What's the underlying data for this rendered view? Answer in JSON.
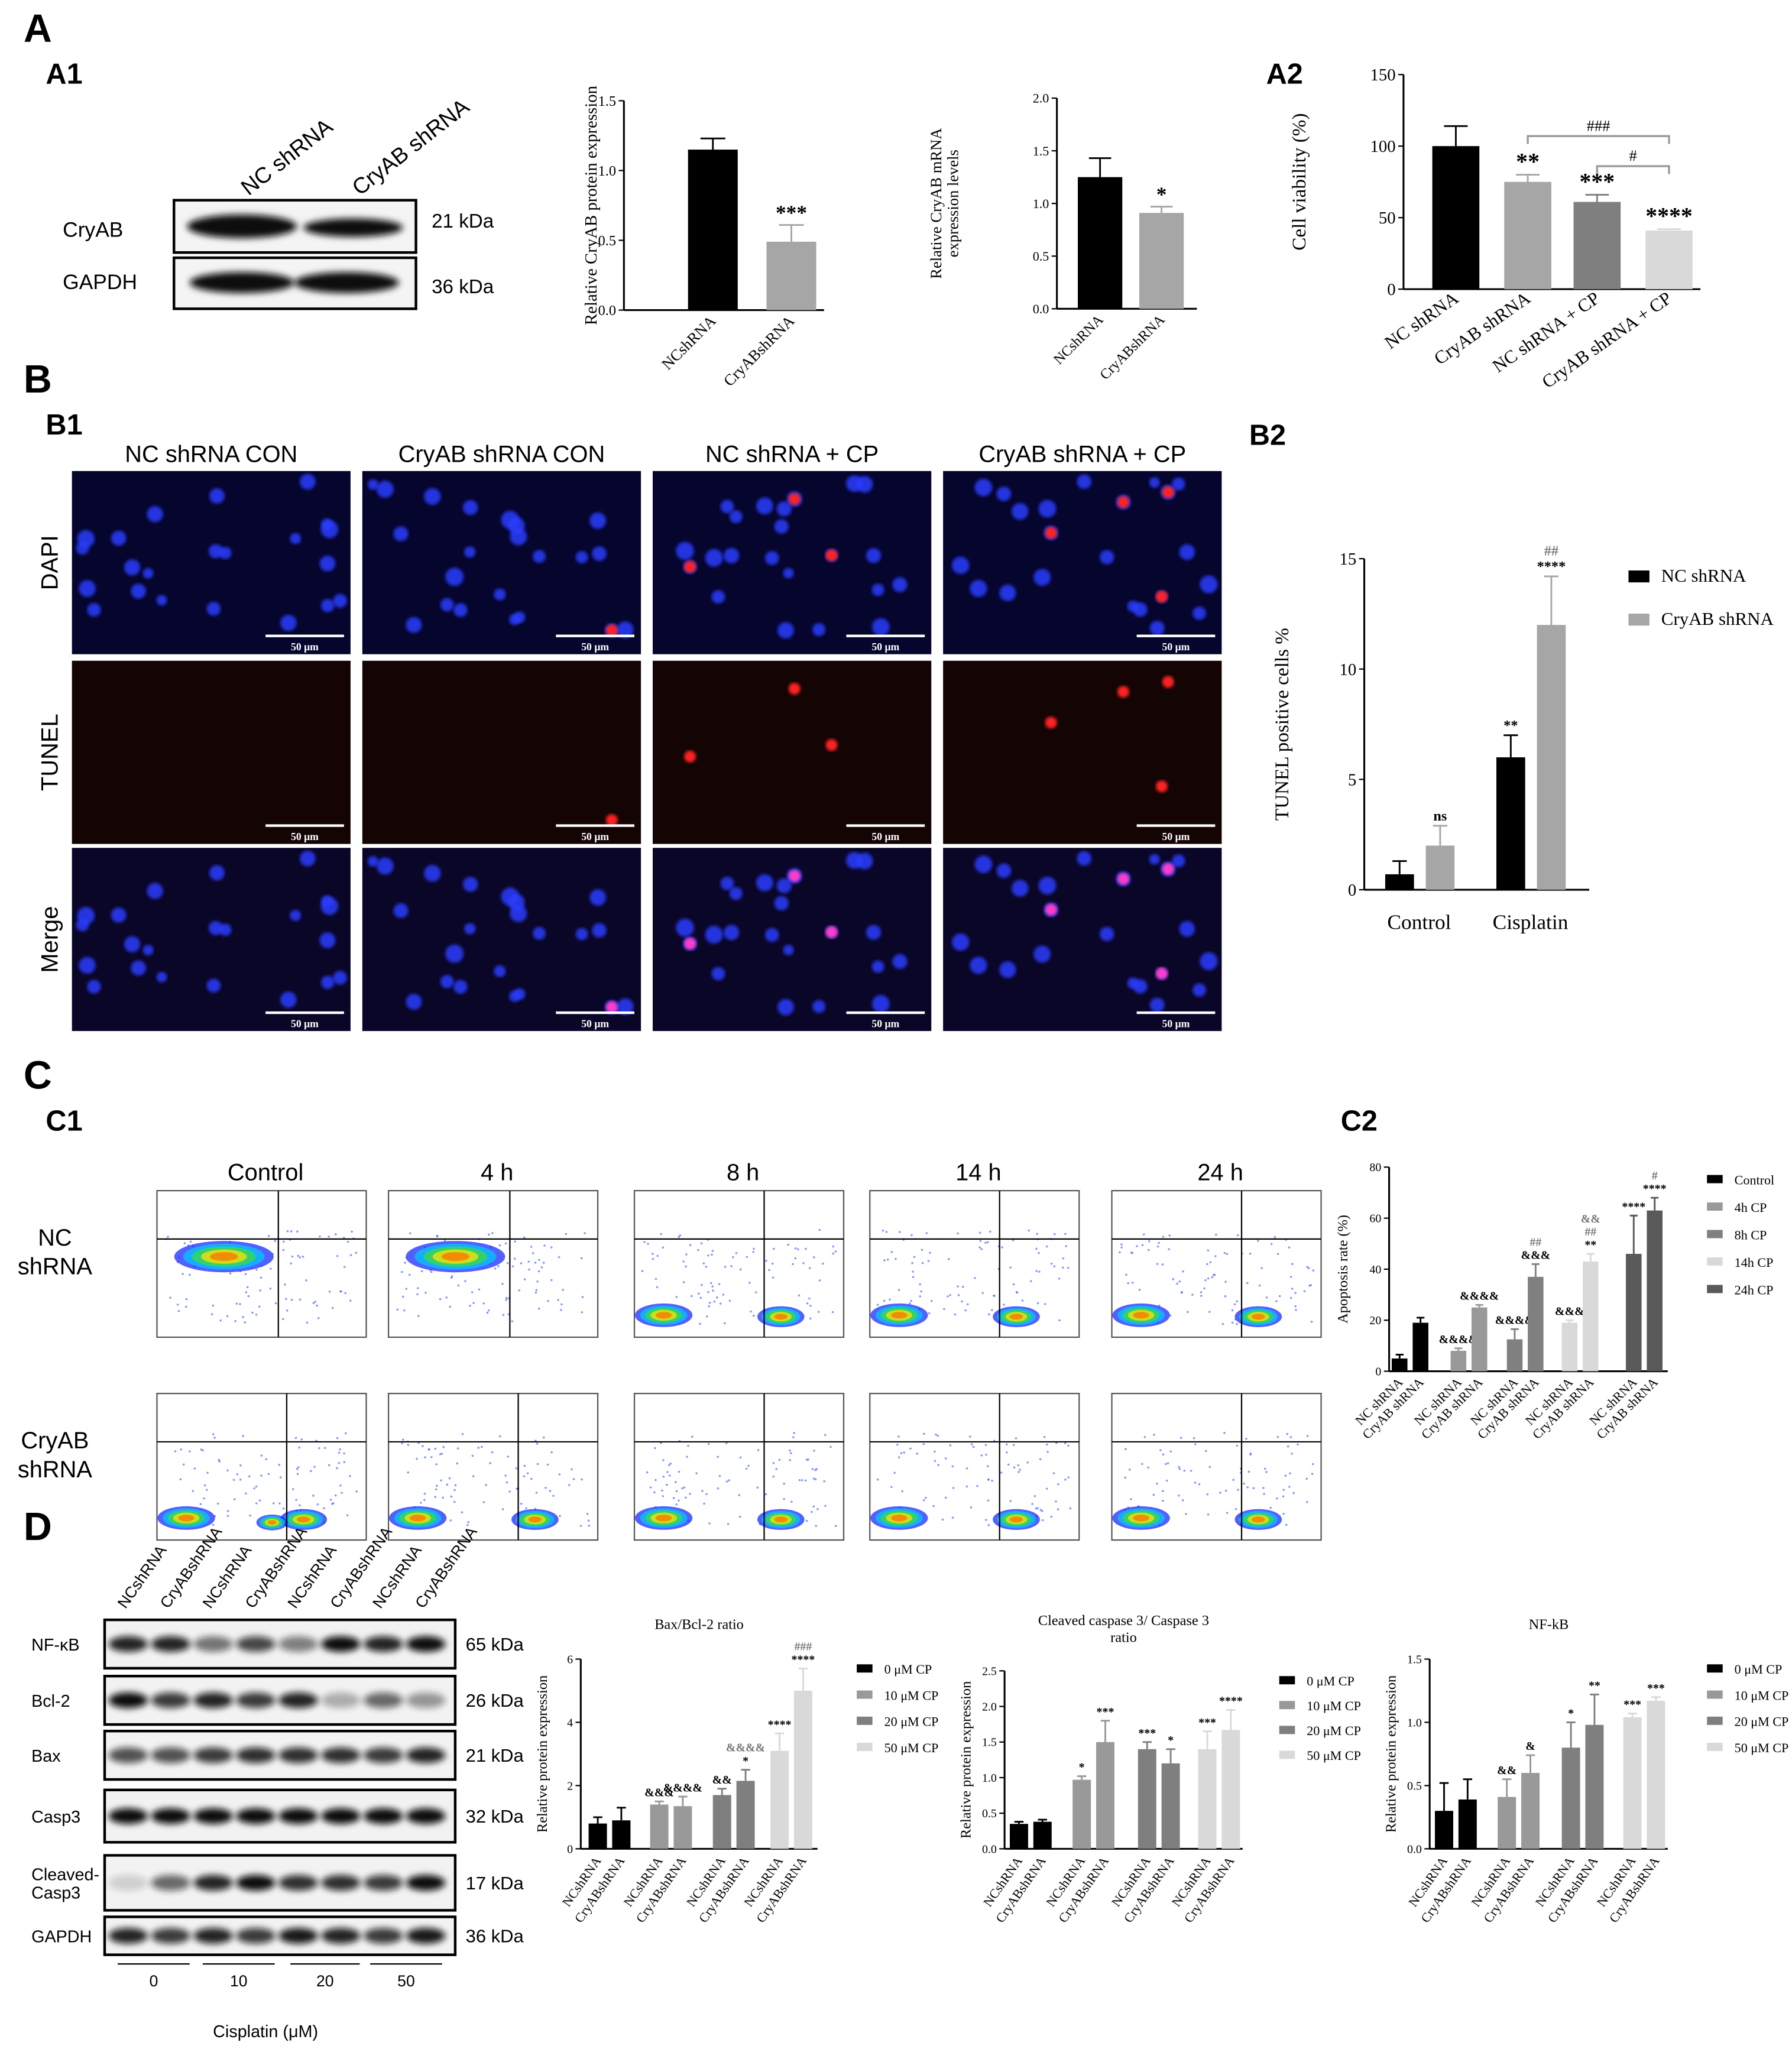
{
  "panel_labels": [
    "A",
    "A1",
    "A2",
    "B",
    "B1",
    "B2",
    "C",
    "C1",
    "C2",
    "D"
  ],
  "blot_a1": {
    "lanes": [
      "NC shRNA",
      "CryAB shRNA"
    ],
    "rows": [
      "CryAB",
      "GAPDH"
    ],
    "sizes": [
      "21 kDa",
      "36 kDa"
    ]
  },
  "microscopy": {
    "columns": [
      "NC shRNA CON",
      "CryAB shRNA CON",
      "NC shRNA + CP",
      "CryAB shRNA + CP"
    ],
    "rows": [
      "DAPI",
      "TUNEL",
      "Merge"
    ],
    "scale_bar": "50 μm"
  },
  "flow_cytometry": {
    "columns": [
      "Control",
      "4 h",
      "8 h",
      "14 h",
      "24 h"
    ],
    "rows": [
      [
        "NC",
        "shRNA"
      ],
      [
        "CryAB",
        "shRNA"
      ]
    ]
  },
  "blot_d": {
    "lanes": [
      "NCshRNA",
      "CryABshRNA",
      "NCshRNA",
      "CryABshRNA",
      "NCshRNA",
      "CryABshRNA",
      "NCshRNA",
      "CryABshRNA"
    ],
    "rows": [
      [
        "NF-κB"
      ],
      [
        "Bcl-2"
      ],
      [
        "Bax"
      ],
      [
        "Casp3"
      ],
      [
        "Cleaved-",
        "Casp3"
      ],
      [
        "GAPDH"
      ]
    ],
    "sizes": [
      "65 kDa",
      "26 kDa",
      "21 kDa",
      "32 kDa",
      "17 kDa",
      "36 kDa"
    ],
    "doses": [
      0,
      10,
      20,
      50
    ],
    "xlabel": "Cisplatin (μM)"
  },
  "chart_data": [
    {
      "type": "bar",
      "ylabel": [
        "Relative CryAB protein expression"
      ],
      "categories": [
        "NCshRNA",
        "CryABshRNA"
      ],
      "values": [
        1.15,
        0.49
      ],
      "errors": [
        0.08,
        0.12
      ],
      "colors": [
        "#000000",
        "#a6a6a6"
      ],
      "annotations": [
        null,
        [
          "***"
        ]
      ],
      "ylim": [
        0,
        1.5
      ],
      "yticks": [
        {
          "value": 0,
          "label": "0.0"
        },
        {
          "value": 0.5,
          "label": "0.5"
        },
        {
          "value": 1,
          "label": "1.0"
        },
        {
          "value": 1.5,
          "label": "1.5"
        }
      ]
    },
    {
      "type": "bar",
      "ylabel": [
        "Relative CryAB mRNA",
        "expression levels"
      ],
      "categories": [
        "NCshRNA",
        "CryABshRNA"
      ],
      "values": [
        1.25,
        0.91
      ],
      "errors": [
        0.18,
        0.06
      ],
      "colors": [
        "#000000",
        "#a6a6a6"
      ],
      "annotations": [
        null,
        [
          "*"
        ]
      ],
      "ylim": [
        0,
        2
      ],
      "yticks": [
        {
          "value": 0,
          "label": "0.0"
        },
        {
          "value": 0.5,
          "label": "0.5"
        },
        {
          "value": 1,
          "label": "1.0"
        },
        {
          "value": 1.5,
          "label": "1.5"
        },
        {
          "value": 2,
          "label": "2.0"
        }
      ]
    },
    {
      "type": "bar",
      "ylabel": [
        "Cell viability (%)"
      ],
      "categories": [
        "NC shRNA",
        "CryAB shRNA",
        "NC shRNA + CP",
        "CryAB shRNA + CP"
      ],
      "values": [
        100,
        75,
        61,
        41
      ],
      "errors": [
        14,
        5,
        5,
        1
      ],
      "colors": [
        "#000000",
        "#a6a6a6",
        "#7f7f7f",
        "#d9d9d9"
      ],
      "annotations": [
        null,
        [
          "**"
        ],
        [
          "***"
        ],
        [
          "****"
        ]
      ],
      "brackets": [
        "###",
        "#"
      ],
      "ylim": [
        0,
        150
      ],
      "yticks": [
        0,
        50,
        100,
        150
      ]
    },
    {
      "type": "bar",
      "group_by": "category",
      "ylabel": [
        "TUNEL positive cells %"
      ],
      "categories": [
        "Control",
        "Cisplatin"
      ],
      "series": [
        {
          "name": "NC shRNA",
          "color": "#000000",
          "values": [
            0.7,
            6.0
          ],
          "errors": [
            0.6,
            1.0
          ],
          "annotations": [
            null,
            [
              "**"
            ]
          ]
        },
        {
          "name": "CryAB shRNA",
          "color": "#a6a6a6",
          "values": [
            2.0,
            12.0
          ],
          "errors": [
            0.9,
            2.2
          ],
          "annotations": [
            [
              "ns"
            ],
            [
              "****",
              "##"
            ]
          ]
        }
      ],
      "ylim": [
        0,
        15
      ],
      "yticks": [
        0,
        5,
        10,
        15
      ],
      "legend": "right"
    },
    {
      "type": "bar",
      "group_by": "series",
      "ylabel": [
        "Apoptosis rate (%)"
      ],
      "categories": [
        "NC shRNA",
        "CryAB shRNA"
      ],
      "series": [
        {
          "name": "Control",
          "color": "#000000",
          "values": [
            5,
            19
          ],
          "errors": [
            1.5,
            2
          ],
          "annotations": [
            null,
            null
          ]
        },
        {
          "name": "4h CP",
          "color": "#999999",
          "values": [
            8,
            25
          ],
          "errors": [
            1,
            1
          ],
          "annotations": [
            [
              "&&&&"
            ],
            [
              "&&&&"
            ]
          ]
        },
        {
          "name": "8h CP",
          "color": "#808080",
          "values": [
            12.5,
            37
          ],
          "errors": [
            4,
            5
          ],
          "annotations": [
            [
              "&&&&"
            ],
            [
              "&&&",
              "##"
            ]
          ]
        },
        {
          "name": "14h CP",
          "color": "#d9d9d9",
          "values": [
            19,
            43
          ],
          "errors": [
            1,
            3
          ],
          "annotations": [
            [
              "&&&"
            ],
            [
              "**",
              "##",
              "&&"
            ]
          ]
        },
        {
          "name": "24h CP",
          "color": "#595959",
          "values": [
            46,
            63
          ],
          "errors": [
            15,
            5
          ],
          "annotations": [
            [
              "****"
            ],
            [
              "****",
              "#"
            ]
          ]
        }
      ],
      "ylim": [
        0,
        80
      ],
      "yticks": [
        0,
        20,
        40,
        60,
        80
      ],
      "legend": "right"
    },
    {
      "type": "bar",
      "group_by": "series",
      "title": [
        "Bax/Bcl-2 ratio"
      ],
      "ylabel": [
        "Relative protein expression"
      ],
      "categories": [
        "NCshRNA",
        "CryABshRNA"
      ],
      "series": [
        {
          "name": "0 μM CP",
          "color": "#000000",
          "values": [
            0.8,
            0.9
          ],
          "errors": [
            0.2,
            0.4
          ],
          "annotations": [
            null,
            null
          ]
        },
        {
          "name": "10 μM CP",
          "color": "#999999",
          "values": [
            1.4,
            1.35
          ],
          "errors": [
            0.1,
            0.3
          ],
          "annotations": [
            [
              "&&&"
            ],
            [
              "&&&&"
            ]
          ]
        },
        {
          "name": "20 μM CP",
          "color": "#7f7f7f",
          "values": [
            1.7,
            2.15
          ],
          "errors": [
            0.2,
            0.35
          ],
          "annotations": [
            [
              "&&"
            ],
            [
              "*",
              "&&&&"
            ]
          ]
        },
        {
          "name": "50 μM CP",
          "color": "#d9d9d9",
          "values": [
            3.1,
            5.0
          ],
          "errors": [
            0.55,
            0.7
          ],
          "annotations": [
            [
              "****"
            ],
            [
              "****",
              "###"
            ]
          ]
        }
      ],
      "ylim": [
        0,
        6
      ],
      "yticks": [
        0,
        2,
        4,
        6
      ],
      "legend": "right"
    },
    {
      "type": "bar",
      "group_by": "series",
      "title": [
        "Cleaved caspase 3/ Caspase 3",
        "ratio"
      ],
      "ylabel": [
        "Relative protein expression"
      ],
      "categories": [
        "NCshRNA",
        "CryABshRNA"
      ],
      "series": [
        {
          "name": "0 μM CP",
          "color": "#000000",
          "values": [
            0.35,
            0.38
          ],
          "errors": [
            0.03,
            0.03
          ],
          "annotations": [
            null,
            null
          ]
        },
        {
          "name": "10 μM CP",
          "color": "#999999",
          "values": [
            0.97,
            1.5
          ],
          "errors": [
            0.05,
            0.3
          ],
          "annotations": [
            [
              "*"
            ],
            [
              "***"
            ]
          ]
        },
        {
          "name": "20 μM CP",
          "color": "#7f7f7f",
          "values": [
            1.4,
            1.2
          ],
          "errors": [
            0.1,
            0.2
          ],
          "annotations": [
            [
              "***"
            ],
            [
              "*"
            ]
          ]
        },
        {
          "name": "50 μM CP",
          "color": "#d9d9d9",
          "values": [
            1.4,
            1.67
          ],
          "errors": [
            0.25,
            0.28
          ],
          "annotations": [
            [
              "***"
            ],
            [
              "****"
            ]
          ]
        }
      ],
      "ylim": [
        0,
        2.5
      ],
      "yticks": [
        {
          "value": 0,
          "label": "0.0"
        },
        {
          "value": 0.5,
          "label": "0.5"
        },
        {
          "value": 1,
          "label": "1.0"
        },
        {
          "value": 1.5,
          "label": "1.5"
        },
        {
          "value": 2,
          "label": "2.0"
        },
        {
          "value": 2.5,
          "label": "2.5"
        }
      ],
      "legend": "right"
    },
    {
      "type": "bar",
      "group_by": "series",
      "title": [
        "NF-kB"
      ],
      "ylabel": [
        "Relative protein expression"
      ],
      "categories": [
        "NCshRNA",
        "CryABshRNA"
      ],
      "series": [
        {
          "name": "0 μM CP",
          "color": "#000000",
          "values": [
            0.3,
            0.39
          ],
          "errors": [
            0.22,
            0.16
          ],
          "annotations": [
            null,
            null
          ]
        },
        {
          "name": "10 μM CP",
          "color": "#999999",
          "values": [
            0.41,
            0.6
          ],
          "errors": [
            0.14,
            0.14
          ],
          "annotations": [
            [
              "&&"
            ],
            [
              "&"
            ]
          ]
        },
        {
          "name": "20 μM CP",
          "color": "#7f7f7f",
          "values": [
            0.8,
            0.98
          ],
          "errors": [
            0.2,
            0.24
          ],
          "annotations": [
            [
              "*"
            ],
            [
              "**"
            ]
          ]
        },
        {
          "name": "50 μM CP",
          "color": "#d9d9d9",
          "values": [
            1.04,
            1.17
          ],
          "errors": [
            0.03,
            0.03
          ],
          "annotations": [
            [
              "***"
            ],
            [
              "***"
            ]
          ]
        }
      ],
      "ylim": [
        0,
        1.5
      ],
      "yticks": [
        {
          "value": 0,
          "label": "0.0"
        },
        {
          "value": 0.5,
          "label": "0.5"
        },
        {
          "value": 1,
          "label": "1.0"
        },
        {
          "value": 1.5,
          "label": "1.5"
        }
      ],
      "legend": "right"
    }
  ]
}
